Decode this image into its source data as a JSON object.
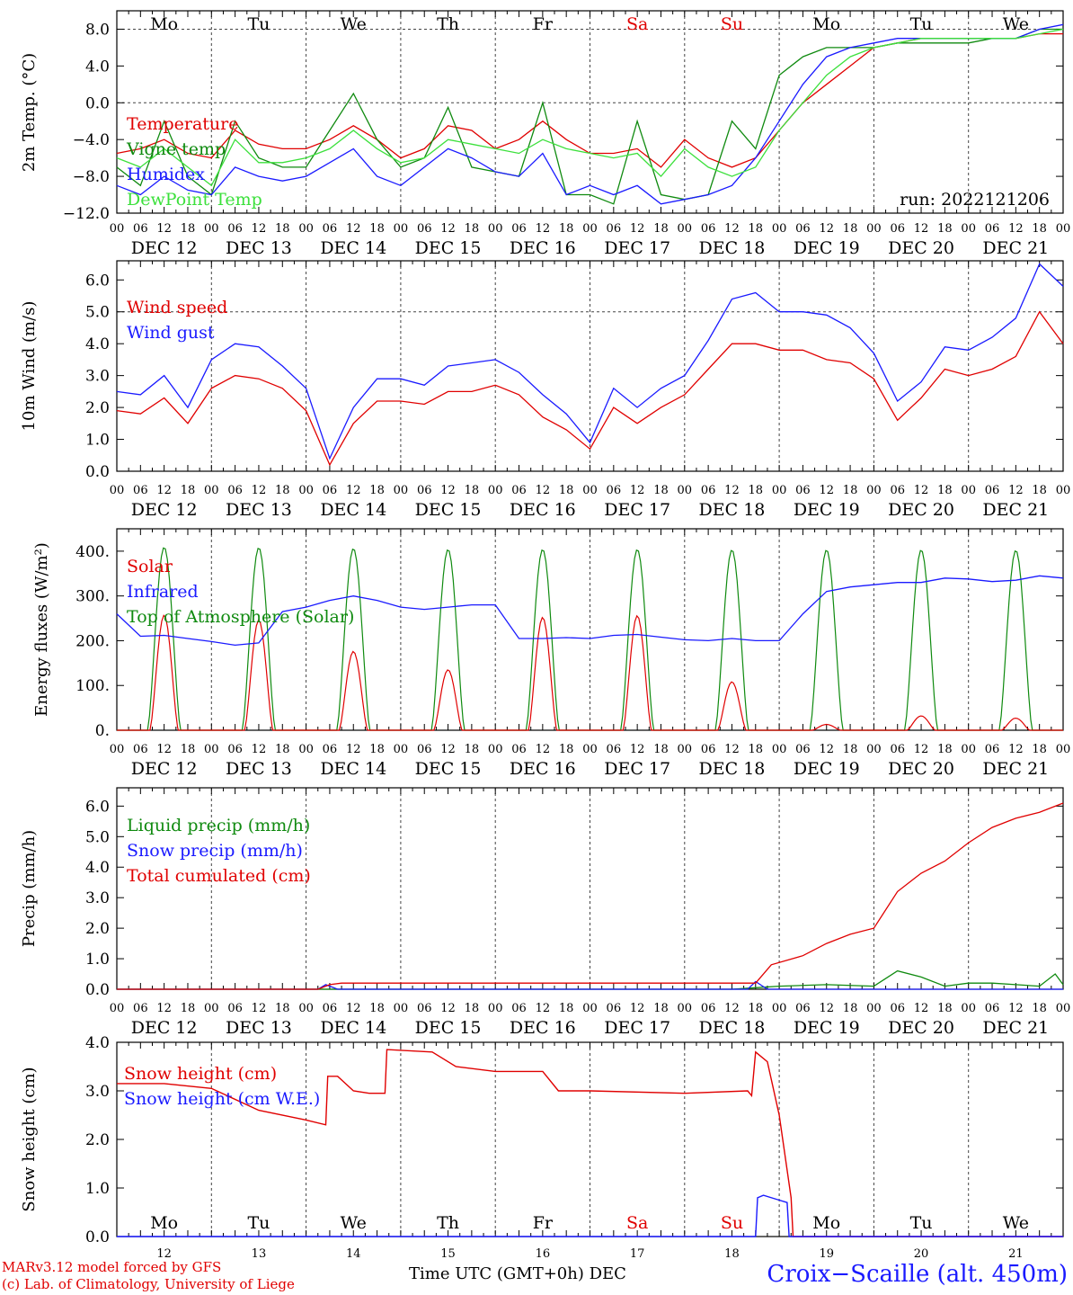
{
  "chart_data": [
    {
      "type": "line",
      "ylabel": "2m Temp. (°C)",
      "ylim": [
        -12,
        10
      ],
      "yticks": [
        "8.0",
        "4.0",
        "0.0",
        "−4.0",
        "−8.0",
        "−12.0"
      ],
      "ytick_values": [
        8,
        4,
        0,
        -4,
        -8,
        -12
      ],
      "ref_lines": [
        8,
        0
      ],
      "annotation": "run: 2022121206",
      "x_hours": [
        0,
        6,
        12,
        18,
        24,
        30,
        36,
        42,
        48,
        54,
        60,
        66,
        72,
        78,
        84,
        90,
        96,
        102,
        108,
        114,
        120,
        126,
        132,
        138,
        144,
        150,
        156,
        162,
        168,
        174,
        180,
        186,
        192,
        198,
        204,
        210,
        216,
        222,
        228,
        234,
        240
      ],
      "series": [
        {
          "name": "Temperature",
          "color": "#e00000",
          "values": [
            -5.5,
            -5,
            -4,
            -5.5,
            -6,
            -3,
            -4.5,
            -5,
            -5,
            -4,
            -2.5,
            -4,
            -6,
            -5,
            -2.5,
            -3,
            -5,
            -4,
            -2,
            -4,
            -5.5,
            -5.5,
            -5,
            -7,
            -4,
            -6,
            -7,
            -6,
            -3,
            0,
            2,
            4,
            6,
            6.5,
            7,
            7,
            7,
            7,
            7,
            7.5,
            7.5
          ]
        },
        {
          "name": "Vigne temp",
          "color": "#0f8a0f",
          "values": [
            -7,
            -9,
            -2,
            -8,
            -10,
            -2,
            -6,
            -7,
            -7,
            -3,
            1,
            -4,
            -7,
            -6,
            -0.5,
            -7,
            -7.5,
            -8,
            0,
            -10,
            -10,
            -11,
            -2,
            -10,
            -10.5,
            -10,
            -2,
            -5,
            3,
            5,
            6,
            6,
            6,
            6.5,
            6.5,
            6.5,
            6.5,
            7,
            7,
            8,
            8
          ]
        },
        {
          "name": "Humidex",
          "color": "#1a1aff",
          "values": [
            -9,
            -10,
            -8,
            -9.5,
            -10,
            -7,
            -8,
            -8.5,
            -8,
            -6.5,
            -5,
            -8,
            -9,
            -7,
            -5,
            -6,
            -7.5,
            -8,
            -5.5,
            -10,
            -9,
            -10,
            -9,
            -11,
            -10.5,
            -10,
            -9,
            -6,
            -2,
            2,
            5,
            6,
            6.5,
            7,
            7,
            7,
            7,
            7,
            7,
            8,
            8.5
          ]
        },
        {
          "name": "DewPoint Temp",
          "color": "#3ce03c",
          "values": [
            -6,
            -7,
            -5,
            -7,
            -9,
            -4,
            -6.5,
            -6.5,
            -6,
            -5,
            -3,
            -5,
            -6.5,
            -6,
            -4,
            -4.5,
            -5,
            -5.5,
            -4,
            -5,
            -5.5,
            -6,
            -5.5,
            -8,
            -5,
            -7,
            -8,
            -7,
            -3,
            0,
            3,
            5,
            6,
            6.5,
            7,
            7,
            7,
            7,
            7,
            7.5,
            8
          ]
        }
      ]
    },
    {
      "type": "line",
      "ylabel": "10m Wind (m/s)",
      "ylim": [
        0,
        6.6
      ],
      "yticks": [
        "6.0",
        "5.0",
        "4.0",
        "3.0",
        "2.0",
        "1.0",
        "0.0"
      ],
      "ytick_values": [
        6,
        5,
        4,
        3,
        2,
        1,
        0
      ],
      "ref_lines": [
        5
      ],
      "x_hours": [
        0,
        6,
        12,
        18,
        24,
        30,
        36,
        42,
        48,
        54,
        60,
        66,
        72,
        78,
        84,
        90,
        96,
        102,
        108,
        114,
        120,
        126,
        132,
        138,
        144,
        150,
        156,
        162,
        168,
        174,
        180,
        186,
        192,
        198,
        204,
        210,
        216,
        222,
        228,
        234,
        240
      ],
      "series": [
        {
          "name": "Wind speed",
          "color": "#e00000",
          "values": [
            1.9,
            1.8,
            2.3,
            1.5,
            2.6,
            3,
            2.9,
            2.6,
            1.9,
            0.2,
            1.5,
            2.2,
            2.2,
            2.1,
            2.5,
            2.5,
            2.7,
            2.4,
            1.7,
            1.3,
            0.7,
            2,
            1.5,
            2,
            2.4,
            3.2,
            4,
            4,
            3.8,
            3.8,
            3.5,
            3.4,
            2.9,
            1.6,
            2.3,
            3.2,
            3,
            3.2,
            3.6,
            5,
            4
          ]
        },
        {
          "name": "Wind gust",
          "color": "#1a1aff",
          "values": [
            2.5,
            2.4,
            3,
            2,
            3.5,
            4,
            3.9,
            3.3,
            2.6,
            0.4,
            2,
            2.9,
            2.9,
            2.7,
            3.3,
            3.4,
            3.5,
            3.1,
            2.4,
            1.8,
            0.9,
            2.6,
            2,
            2.6,
            3,
            4.1,
            5.4,
            5.6,
            5,
            5,
            4.9,
            4.5,
            3.7,
            2.2,
            2.8,
            3.9,
            3.8,
            4.2,
            4.8,
            6.5,
            5.8
          ]
        }
      ]
    },
    {
      "type": "area",
      "ylabel": "Energy fluxes (W/m²)",
      "ylim": [
        0,
        450
      ],
      "yticks": [
        "400.",
        "300.",
        "200.",
        "100.",
        "0."
      ],
      "ytick_values": [
        400,
        300,
        200,
        100,
        0
      ],
      "day_peaks": {
        "Top of Atmosphere (Solar)": [
          409,
          408,
          406,
          404,
          404,
          404,
          403,
          403,
          403,
          402
        ],
        "Solar": [
          257,
          246,
          176,
          135,
          252,
          256,
          108,
          13,
          32,
          27
        ]
      },
      "series": [
        {
          "name": "Solar",
          "color": "#e00000"
        },
        {
          "name": "Infrared",
          "color": "#1a1aff",
          "x_hours": [
            0,
            6,
            12,
            18,
            24,
            30,
            36,
            42,
            48,
            54,
            60,
            66,
            72,
            78,
            84,
            90,
            96,
            102,
            108,
            114,
            120,
            126,
            132,
            138,
            144,
            150,
            156,
            162,
            168,
            174,
            180,
            186,
            192,
            198,
            204,
            210,
            216,
            222,
            228,
            234,
            240
          ],
          "values": [
            260,
            210,
            212,
            205,
            198,
            190,
            195,
            265,
            275,
            290,
            300,
            290,
            275,
            270,
            275,
            280,
            280,
            205,
            205,
            207,
            205,
            212,
            214,
            208,
            202,
            200,
            205,
            200,
            200,
            260,
            310,
            320,
            325,
            330,
            330,
            340,
            338,
            332,
            335,
            345,
            340
          ]
        },
        {
          "name": "Top of Atmosphere (Solar)",
          "color": "#0f8a0f"
        }
      ]
    },
    {
      "type": "line",
      "ylabel": "Precip (mm/h)",
      "ylim": [
        0,
        6.6
      ],
      "yticks": [
        "6.0",
        "5.0",
        "4.0",
        "3.0",
        "2.0",
        "1.0",
        "0.0"
      ],
      "ytick_values": [
        6,
        5,
        4,
        3,
        2,
        1,
        0
      ],
      "series": [
        {
          "name": "Liquid precip (mm/h)",
          "color": "#0f8a0f",
          "x_hours": [
            0,
            48,
            144,
            150,
            156,
            162,
            168,
            180,
            192,
            198,
            204,
            210,
            216,
            222,
            228,
            234,
            238,
            240
          ],
          "values": [
            0,
            0,
            0,
            0,
            0,
            0.05,
            0.1,
            0.15,
            0.1,
            0.6,
            0.4,
            0.1,
            0.2,
            0.2,
            0.15,
            0.1,
            0.5,
            0.15
          ]
        },
        {
          "name": "Snow precip (mm/h)",
          "color": "#1a1aff",
          "x_hours": [
            0,
            51,
            53,
            56,
            160,
            162,
            165,
            240
          ],
          "values": [
            0,
            0,
            0.15,
            0,
            0,
            0.25,
            0,
            0
          ]
        },
        {
          "name": "Total cumulated (cm)",
          "color": "#e00000",
          "x_hours": [
            0,
            51,
            54,
            57,
            96,
            144,
            162,
            166,
            174,
            180,
            186,
            192,
            198,
            204,
            210,
            216,
            222,
            228,
            234,
            240
          ],
          "values": [
            0,
            0,
            0.15,
            0.2,
            0.2,
            0.2,
            0.2,
            0.8,
            1.1,
            1.5,
            1.8,
            2,
            3.2,
            3.8,
            4.2,
            4.8,
            5.3,
            5.6,
            5.8,
            6.1
          ]
        }
      ]
    },
    {
      "type": "line",
      "ylabel": "Snow height (cm)",
      "ylim": [
        0,
        4
      ],
      "yticks": [
        "4.0",
        "3.0",
        "2.0",
        "1.0",
        "0.0"
      ],
      "ytick_values": [
        4,
        3,
        2,
        1,
        0
      ],
      "series": [
        {
          "name": "Snow height (cm)",
          "color": "#e00000",
          "x_hours": [
            0,
            12,
            24,
            36,
            48,
            53,
            53.5,
            56,
            60,
            64,
            68,
            68.5,
            80,
            86,
            96,
            108,
            112,
            120,
            144,
            160,
            161,
            162,
            165,
            168,
            171,
            171.5,
            240
          ],
          "values": [
            3.15,
            3.15,
            3.05,
            2.6,
            2.4,
            2.3,
            3.3,
            3.3,
            3.0,
            2.95,
            2.95,
            3.85,
            3.8,
            3.5,
            3.4,
            3.4,
            3.0,
            3.0,
            2.95,
            3.0,
            2.9,
            3.8,
            3.6,
            2.5,
            0.8,
            0,
            0
          ]
        },
        {
          "name": "Snow height (cm W.E.)",
          "color": "#1a1aff",
          "x_hours": [
            0,
            162,
            162.5,
            164,
            168,
            170,
            170.5,
            240
          ],
          "values": [
            0,
            0,
            0.8,
            0.85,
            0.75,
            0.7,
            0,
            0
          ]
        }
      ]
    }
  ],
  "x_axis": {
    "hour_labels": [
      "00",
      "06",
      "12",
      "18"
    ],
    "final_label": "00",
    "dates": [
      "DEC 12",
      "DEC 13",
      "DEC 14",
      "DEC 15",
      "DEC 16",
      "DEC 17",
      "DEC 18",
      "DEC 19",
      "DEC 20",
      "DEC 21"
    ],
    "weekdays": [
      "Mo",
      "Tu",
      "We",
      "Th",
      "Fr",
      "Sa",
      "Su",
      "Mo",
      "Tu",
      "We"
    ],
    "weekday_colors": [
      "#000000",
      "#000000",
      "#000000",
      "#000000",
      "#000000",
      "#e00000",
      "#e00000",
      "#000000",
      "#000000",
      "#000000"
    ],
    "day_numbers": [
      "12",
      "13",
      "14",
      "15",
      "16",
      "17",
      "18",
      "19",
      "20",
      "21"
    ],
    "title": "Time UTC (GMT+0h) DEC"
  },
  "footer": {
    "credit_line1": "MARv3.12 model forced by GFS",
    "credit_line2": "(c) Lab. of Climatology, University of Liege",
    "station": "Croix−Scaille (alt. 450m)"
  }
}
